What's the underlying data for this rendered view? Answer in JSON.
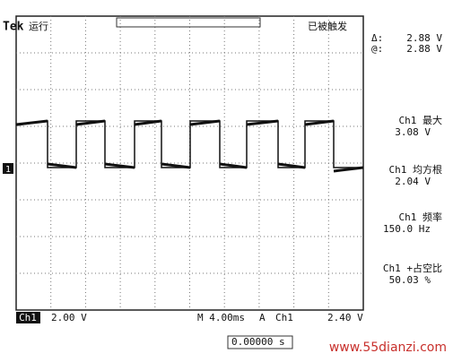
{
  "header": {
    "brand": "Tek",
    "state": "运行",
    "trigger_status": "已被触发"
  },
  "cursor": {
    "delta_label": "Δ:",
    "delta_value": "2.88 V",
    "at_label": "@:",
    "at_value": "2.88 V"
  },
  "channel_marker": "1",
  "measurements": [
    {
      "label": "Ch1 最大",
      "value": "3.08 V"
    },
    {
      "label": "Ch1 均方根",
      "value": "2.04 V"
    },
    {
      "label": "Ch1 频率",
      "value": "150.0 Hz"
    },
    {
      "label": "Ch1 +占空比",
      "value": "50.03 %"
    }
  ],
  "status_bar": {
    "channel": "Ch1",
    "volts_div": "2.00 V",
    "timebase": "M 4.00ms",
    "trigger_mode": "A",
    "trigger_source": "Ch1",
    "trigger_level": "2.40 V"
  },
  "footer": {
    "position": "0.00000 s",
    "watermark": "www.55dianzi.com"
  }
}
